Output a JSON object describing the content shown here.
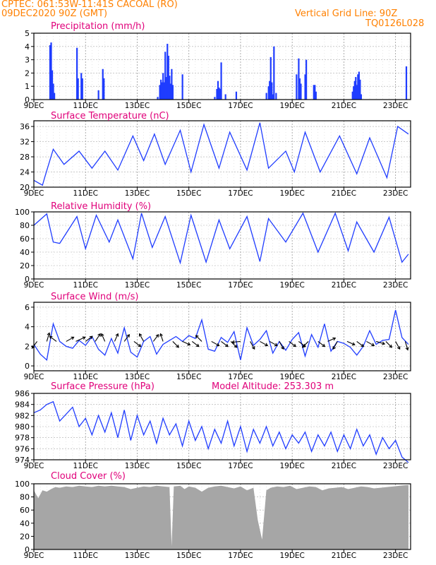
{
  "header": {
    "line1": "CPTEC:   061:53W-11:41S   CACOAL (RO)",
    "line2": "09DEC2020 90Z (GMT)",
    "grid_note": "Vertical Grid Line: 90Z",
    "code": "TQ0126L028"
  },
  "x_tick_labels": [
    "9DEC",
    "11DEC",
    "13DEC",
    "15DEC",
    "17DEC",
    "19DEC",
    "21DEC",
    "23DEC"
  ],
  "x_tick_hours": [
    0,
    48,
    96,
    144,
    192,
    240,
    288,
    336
  ],
  "chart_data": [
    {
      "type": "bar",
      "title": "Precipitation (mm/h)",
      "ylim": [
        0,
        5
      ],
      "yticks": [
        0,
        1,
        2,
        3,
        4,
        5
      ],
      "grid": true,
      "color": "#1f3cff",
      "x_hours": [
        15,
        16,
        17,
        18,
        19,
        40,
        41,
        44,
        45,
        60,
        64,
        65,
        115,
        117,
        118,
        119,
        120,
        121,
        122,
        123,
        124,
        125,
        126,
        127,
        128,
        129,
        138,
        168,
        170,
        171,
        172,
        173,
        174,
        178,
        188,
        216,
        218,
        219,
        220,
        221,
        222,
        223,
        225,
        244,
        246,
        247,
        248,
        252,
        253,
        260,
        261,
        262,
        296,
        297,
        298,
        299,
        300,
        301,
        302,
        303,
        304,
        346
      ],
      "values": [
        4.1,
        4.3,
        2.2,
        1.2,
        0.5,
        3.9,
        1.6,
        2.0,
        1.6,
        0.7,
        2.3,
        1.6,
        0.2,
        1.1,
        1.5,
        1.3,
        2.0,
        1.3,
        3.6,
        1.7,
        4.2,
        3.3,
        1.8,
        1.2,
        2.3,
        1.1,
        1.9,
        0.2,
        0.8,
        1.4,
        0.9,
        0.8,
        2.8,
        0.4,
        0.6,
        0.5,
        1.0,
        1.4,
        3.2,
        1.3,
        0.4,
        4.0,
        0.5,
        1.9,
        3.1,
        1.6,
        1.2,
        1.9,
        3.0,
        1.1,
        1.1,
        0.6,
        0.6,
        1.0,
        1.4,
        1.7,
        1.1,
        1.9,
        2.1,
        1.5,
        0.4,
        2.5
      ]
    },
    {
      "type": "line",
      "title": "Surface Temperature (nC)",
      "ylim": [
        20,
        37.5
      ],
      "yticks": [
        20,
        24,
        28,
        32,
        36
      ],
      "grid": true,
      "color": "#1f3cff",
      "x_hours": [
        0,
        8,
        10,
        18,
        28,
        42,
        54,
        66,
        78,
        92,
        102,
        112,
        122,
        136,
        146,
        158,
        172,
        182,
        198,
        210,
        218,
        234,
        242,
        252,
        266,
        284,
        300,
        312,
        328,
        338,
        348
      ],
      "values": [
        21.8,
        20.5,
        22.5,
        30.0,
        26.0,
        29.5,
        25.0,
        29.5,
        24.5,
        33.5,
        27.0,
        34.0,
        26.0,
        35.0,
        24.0,
        36.5,
        25.0,
        34.5,
        24.5,
        37.0,
        25.0,
        29.5,
        24.0,
        34.5,
        24.0,
        33.5,
        23.5,
        33.0,
        22.5,
        36.0,
        34.0
      ]
    },
    {
      "type": "line",
      "title": "Relative Humidity (%)",
      "ylim": [
        0,
        100
      ],
      "yticks": [
        0,
        20,
        40,
        60,
        80,
        100
      ],
      "grid": true,
      "color": "#1f3cff",
      "x_hours": [
        0,
        12,
        18,
        24,
        40,
        48,
        58,
        70,
        78,
        92,
        100,
        110,
        122,
        136,
        146,
        160,
        172,
        182,
        198,
        210,
        218,
        234,
        250,
        264,
        280,
        292,
        300,
        316,
        330,
        342,
        348
      ],
      "values": [
        80,
        97,
        55,
        53,
        93,
        45,
        95,
        55,
        88,
        30,
        98,
        47,
        93,
        24,
        95,
        25,
        88,
        45,
        93,
        26,
        90,
        55,
        98,
        40,
        98,
        42,
        85,
        40,
        92,
        25,
        37
      ]
    },
    {
      "type": "line",
      "title": "Surface Wind (m/s)",
      "ylim": [
        -0.5,
        6.5
      ],
      "yticks": [
        0,
        2,
        4,
        6
      ],
      "grid": true,
      "color": "#1f3cff",
      "x_hours": [
        0,
        6,
        12,
        18,
        24,
        30,
        36,
        42,
        48,
        54,
        60,
        66,
        72,
        78,
        84,
        90,
        96,
        102,
        108,
        114,
        120,
        126,
        132,
        138,
        144,
        150,
        156,
        162,
        168,
        174,
        180,
        186,
        192,
        198,
        204,
        210,
        216,
        222,
        228,
        234,
        240,
        246,
        252,
        258,
        264,
        270,
        276,
        282,
        288,
        294,
        300,
        306,
        312,
        318,
        324,
        330,
        336,
        342,
        348
      ],
      "values": [
        2.2,
        1.2,
        0.6,
        4.3,
        2.5,
        2.0,
        1.8,
        2.6,
        2.1,
        3.0,
        1.7,
        1.1,
        2.8,
        1.3,
        3.9,
        1.4,
        0.9,
        2.5,
        3.0,
        1.2,
        2.2,
        2.6,
        3.0,
        2.5,
        3.1,
        2.8,
        4.7,
        1.7,
        1.5,
        2.9,
        2.4,
        3.5,
        0.6,
        3.9,
        2.1,
        2.7,
        3.6,
        1.3,
        2.5,
        1.6,
        2.7,
        3.4,
        1.0,
        3.2,
        1.9,
        4.3,
        1.5,
        2.5,
        2.3,
        1.9,
        1.1,
        2.0,
        3.6,
        2.2,
        2.6,
        2.7,
        5.7,
        2.9,
        2.2
      ]
    },
    {
      "type": "vector",
      "title": "Surface Wind direction",
      "x_hours": [
        3,
        12,
        21,
        30,
        39,
        48,
        57,
        66,
        75,
        84,
        93,
        102,
        111,
        120,
        129,
        138,
        147,
        156,
        165,
        174,
        183,
        192,
        201,
        210,
        219,
        228,
        237,
        246,
        255,
        264,
        273,
        282,
        291,
        300,
        309,
        318,
        327,
        336,
        345
      ],
      "u": [
        -0.6,
        0.3,
        -0.8,
        0.9,
        1.1,
        0.8,
        0.6,
        -0.4,
        0.4,
        0.6,
        0.8,
        -0.5,
        0.6,
        -0.3,
        0.7,
        0.9,
        0.8,
        -0.7,
        0.9,
        0.8,
        0.7,
        -1.0,
        0.5,
        0.9,
        0.9,
        0.5,
        0.8,
        0.8,
        -0.7,
        0.8,
        0.9,
        -0.5,
        0.9,
        0.8,
        0.9,
        1.0,
        0.7,
        0.5,
        0.3
      ],
      "v": [
        -0.8,
        1.0,
        0.6,
        0.5,
        0.5,
        0.6,
        0.9,
        0.9,
        0.9,
        0.8,
        -0.6,
        0.9,
        0.8,
        0.9,
        -0.7,
        -0.4,
        -0.6,
        0.7,
        -0.5,
        -0.6,
        -0.7,
        -0.1,
        -0.9,
        -0.5,
        -0.5,
        -0.9,
        -0.6,
        -0.6,
        -0.7,
        -0.6,
        0.4,
        -0.9,
        -0.4,
        -0.6,
        -0.5,
        -0.3,
        -0.7,
        -0.9,
        -1.0
      ]
    },
    {
      "type": "line",
      "title": "Surface Pressure (hPa)",
      "annotation": "Model Altitude: 253.303 m",
      "ylim": [
        974,
        986
      ],
      "yticks": [
        974,
        976,
        978,
        980,
        982,
        984,
        986
      ],
      "grid": true,
      "color": "#1f3cff",
      "x_hours": [
        0,
        6,
        12,
        18,
        24,
        36,
        42,
        48,
        54,
        60,
        66,
        72,
        78,
        84,
        90,
        96,
        102,
        108,
        114,
        120,
        126,
        132,
        138,
        144,
        150,
        156,
        162,
        168,
        174,
        180,
        186,
        192,
        198,
        204,
        210,
        216,
        222,
        228,
        234,
        240,
        246,
        252,
        258,
        264,
        270,
        276,
        282,
        288,
        294,
        300,
        306,
        312,
        318,
        324,
        330,
        336,
        342,
        348
      ],
      "values": [
        982.5,
        983.0,
        984.0,
        984.5,
        981.0,
        983.5,
        980.0,
        981.5,
        978.5,
        982.0,
        979.0,
        982.5,
        978.0,
        983.0,
        977.5,
        982.0,
        978.5,
        981.0,
        977.0,
        981.5,
        978.5,
        980.5,
        976.5,
        981.0,
        977.5,
        980.0,
        976.0,
        979.5,
        977.0,
        981.0,
        976.5,
        980.0,
        975.5,
        979.5,
        977.0,
        980.0,
        976.5,
        979.0,
        976.0,
        978.5,
        977.0,
        979.0,
        975.5,
        978.5,
        976.5,
        979.0,
        975.5,
        978.5,
        976.0,
        979.5,
        976.5,
        978.5,
        975.0,
        978.0,
        976.0,
        977.5,
        974.5,
        973.5
      ]
    },
    {
      "type": "area",
      "title": "Cloud Cover (%)",
      "ylim": [
        0,
        100
      ],
      "yticks": [
        0,
        20,
        40,
        60,
        80,
        100
      ],
      "grid": true,
      "color": "#a6a6a6",
      "x_hours": [
        0,
        4,
        8,
        12,
        16,
        20,
        24,
        30,
        36,
        42,
        48,
        54,
        60,
        66,
        72,
        78,
        84,
        90,
        96,
        102,
        108,
        114,
        120,
        126,
        128,
        130,
        136,
        140,
        144,
        150,
        156,
        162,
        168,
        174,
        180,
        186,
        192,
        198,
        204,
        208,
        212,
        216,
        220,
        226,
        232,
        238,
        244,
        250,
        256,
        262,
        268,
        274,
        280,
        286,
        292,
        298,
        304,
        310,
        316,
        322,
        328,
        334,
        340,
        346,
        348
      ],
      "values": [
        90,
        78,
        90,
        88,
        92,
        95,
        94,
        96,
        95,
        97,
        96,
        95,
        97,
        96,
        97,
        96,
        95,
        92,
        94,
        96,
        95,
        97,
        96,
        95,
        5,
        96,
        97,
        92,
        96,
        94,
        88,
        94,
        96,
        97,
        95,
        93,
        96,
        90,
        94,
        45,
        15,
        90,
        94,
        96,
        95,
        97,
        92,
        94,
        96,
        95,
        90,
        93,
        94,
        95,
        92,
        94,
        96,
        95,
        93,
        94,
        95,
        96,
        97,
        98,
        98
      ]
    }
  ]
}
